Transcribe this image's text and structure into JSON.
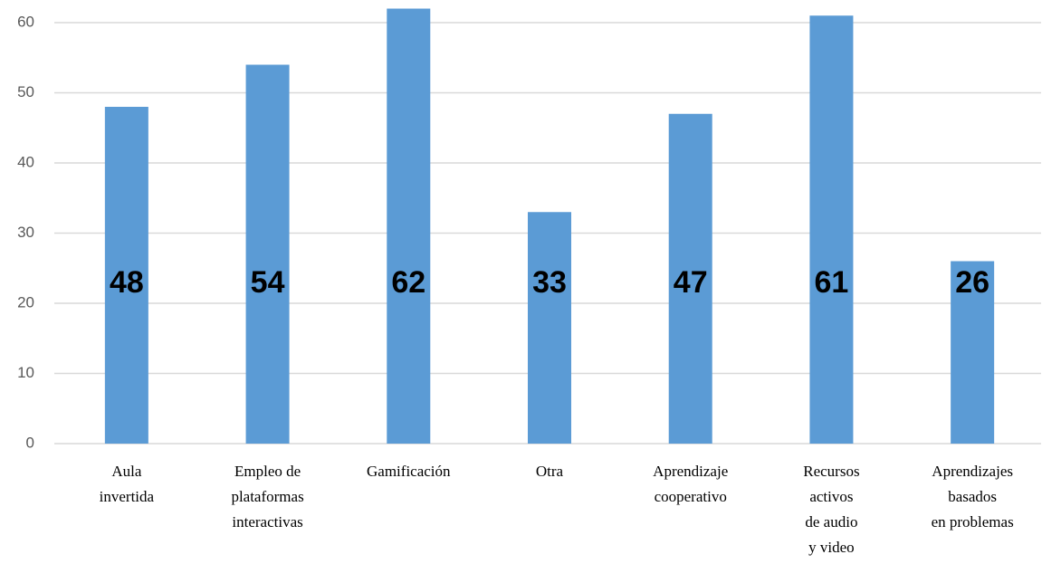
{
  "chart_data": {
    "type": "bar",
    "categories": [
      [
        "Aula",
        "invertida"
      ],
      [
        "Empleo de",
        "plataformas",
        "interactivas"
      ],
      [
        "Gamificación"
      ],
      [
        "Otra"
      ],
      [
        "Aprendizaje",
        "cooperativo"
      ],
      [
        "Recursos",
        "activos",
        "de audio",
        "y video"
      ],
      [
        "Aprendizajes",
        "basados",
        "en problemas"
      ]
    ],
    "values": [
      48,
      54,
      62,
      33,
      47,
      61,
      26
    ],
    "color": "#5b9bd5",
    "ylim": [
      0,
      60
    ],
    "yticks": [
      0,
      10,
      20,
      30,
      40,
      50,
      60
    ],
    "grid": true
  }
}
